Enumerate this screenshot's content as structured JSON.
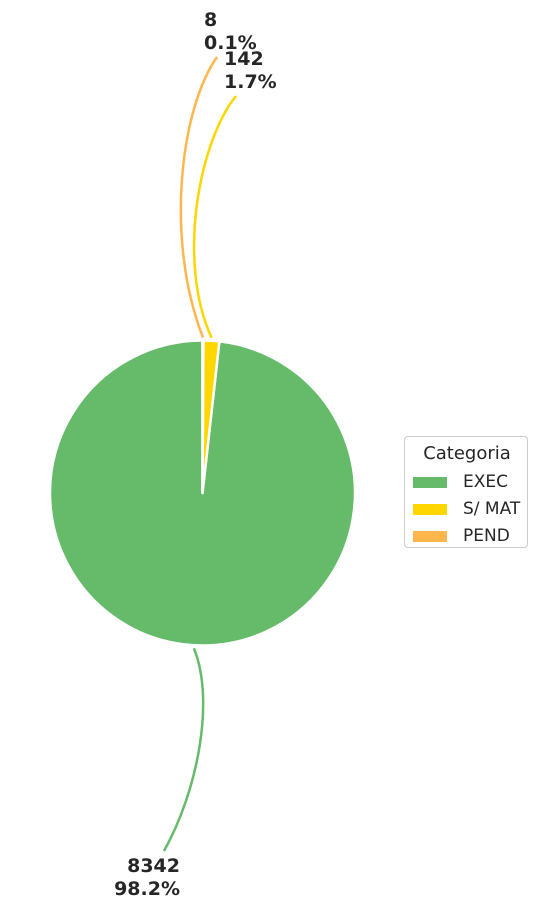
{
  "chart_data": {
    "type": "pie",
    "title": "",
    "slices": [
      {
        "name": "EXEC",
        "value": 8342,
        "percent_label": "98.2%",
        "color": "#66bb6a"
      },
      {
        "name": "S/ MAT",
        "value": 142,
        "percent_label": "1.7%",
        "color": "#ffd600"
      },
      {
        "name": "PEND",
        "value": 8,
        "percent_label": "0.1%",
        "color": "#ffb74d"
      }
    ],
    "start_angle": "12 o'clock",
    "direction": "counterclockwise",
    "labels": "outside with curved leader lines",
    "legend": {
      "title": "Categoria",
      "placement": "right",
      "entries": [
        "EXEC",
        "S/ MAT",
        "PEND"
      ]
    }
  }
}
